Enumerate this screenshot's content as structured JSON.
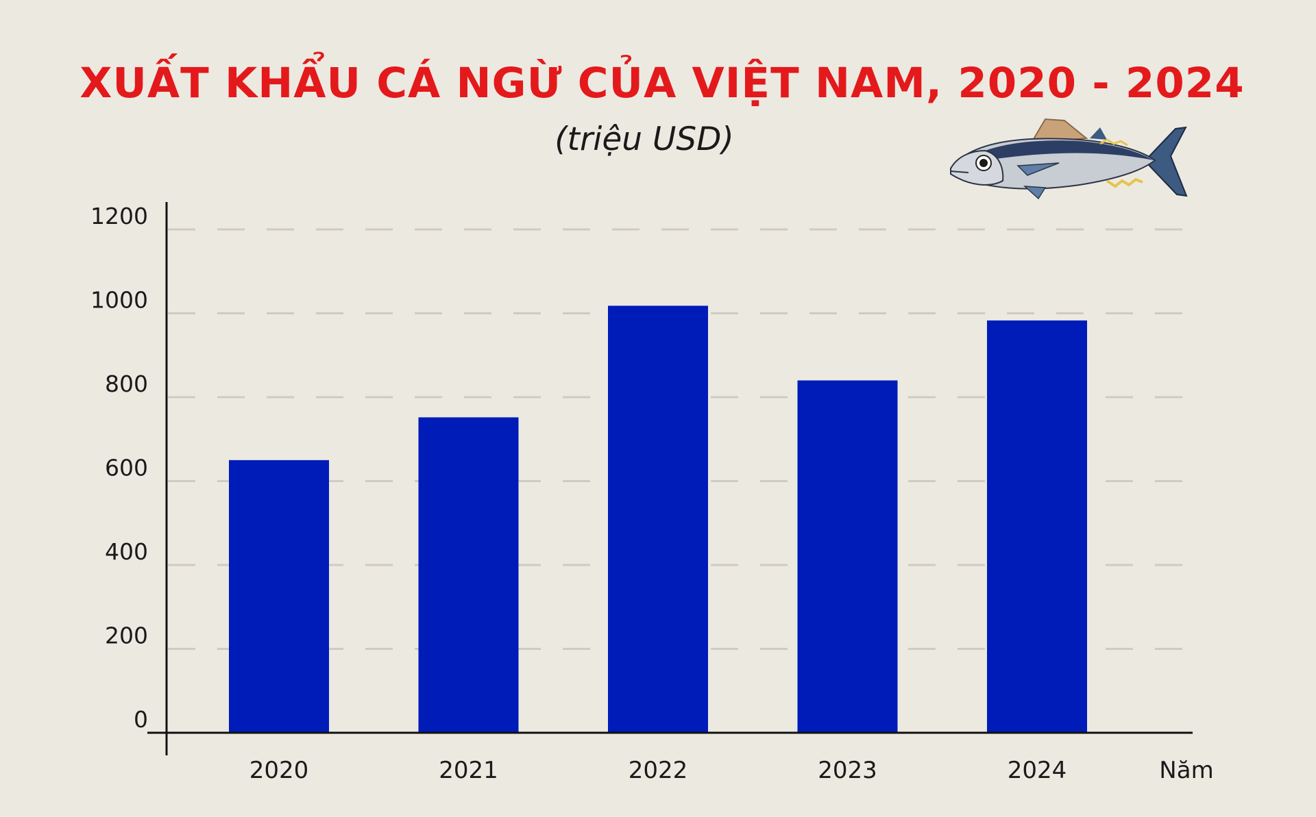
{
  "chart_data": {
    "type": "bar",
    "title": "XUẤT KHẨU CÁ NGỪ CỦA VIỆT NAM, 2020 - 2024",
    "subtitle": "(triệu USD)",
    "xlabel": "Năm",
    "ylabel": "",
    "categories": [
      "2020",
      "2021",
      "2022",
      "2023",
      "2024"
    ],
    "values": [
      650,
      752,
      1018,
      840,
      983
    ],
    "ylim": [
      0,
      1200
    ],
    "yticks": [
      0,
      200,
      400,
      600,
      800,
      1000,
      1200
    ],
    "grid": true,
    "legend": "none",
    "bar_color": "#001cb8"
  },
  "colors": {
    "title": "#e3191b",
    "background": "#ece9e1",
    "grid": "#cfcbc2",
    "axis": "#111111"
  },
  "decoration": {
    "icon": "tuna-fish-icon"
  }
}
